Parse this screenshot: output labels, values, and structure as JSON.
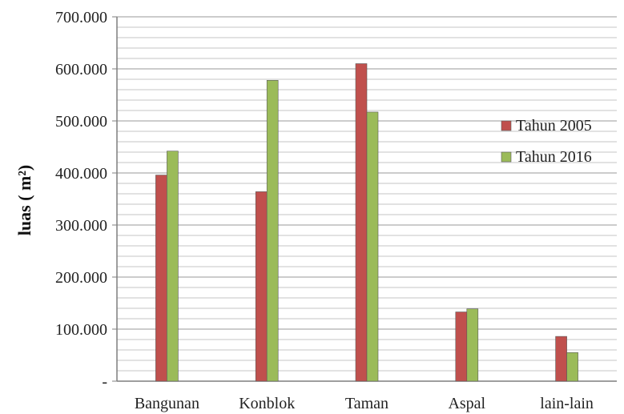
{
  "chart_data": {
    "type": "bar",
    "title": "",
    "ylabel": "luas ( m²)",
    "xlabel": "",
    "ylim": [
      0,
      700000
    ],
    "y_major_step": 100000,
    "y_minor_step": 20000,
    "grid": true,
    "legend_position": "right",
    "yticks": [
      "-",
      "100.000",
      "200.000",
      "300.000",
      "400.000",
      "500.000",
      "600.000",
      "700.000"
    ],
    "categories": [
      "Bangunan",
      "Konblok",
      "Taman",
      "Aspal",
      "lain-lain"
    ],
    "series": [
      {
        "name": "Tahun 2005",
        "color": "#c0504d",
        "values": [
          396000,
          364000,
          610000,
          133000,
          86000
        ]
      },
      {
        "name": "Tahun 2016",
        "color": "#9bbb59",
        "values": [
          442000,
          578000,
          517000,
          139000,
          55000
        ]
      }
    ]
  }
}
